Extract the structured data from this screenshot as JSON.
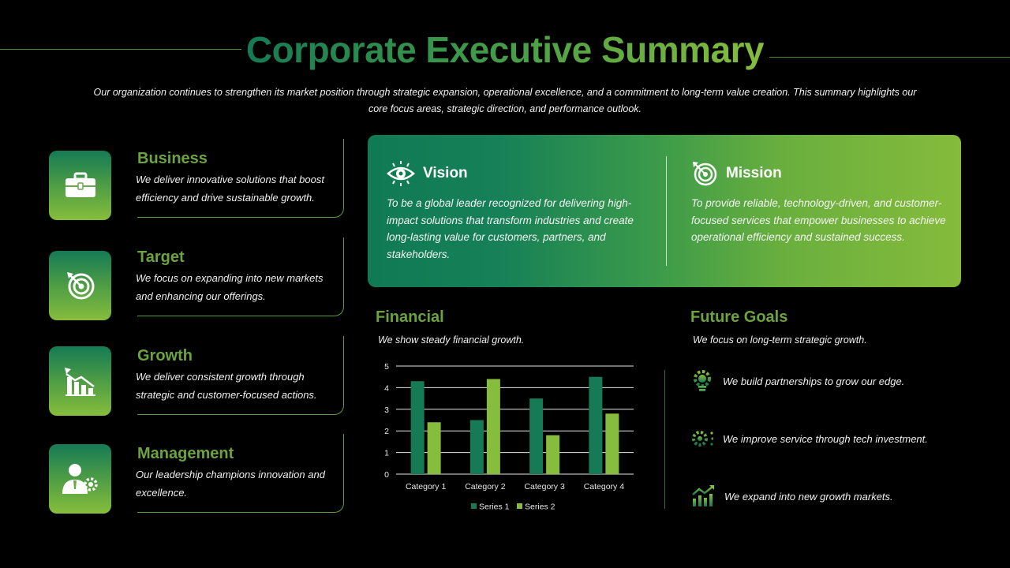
{
  "header": {
    "title": "Corporate Executive Summary",
    "intro": "Our organization continues to strengthen its market position through strategic expansion, operational excellence, and a commitment to long-term value creation. This summary highlights our core focus areas, strategic direction, and performance outlook."
  },
  "focus_areas": [
    {
      "title": "Business",
      "desc": "We deliver innovative solutions that boost efficiency and drive sustainable growth.",
      "icon": "briefcase-icon"
    },
    {
      "title": "Target",
      "desc": "We focus on expanding into new markets and enhancing our offerings.",
      "icon": "target-icon"
    },
    {
      "title": "Growth",
      "desc": "We deliver consistent growth through strategic and customer-focused actions.",
      "icon": "growth-chart-icon"
    },
    {
      "title": "Management",
      "desc": "Our leadership champions innovation and excellence.",
      "icon": "manager-gear-icon"
    }
  ],
  "vision": {
    "title": "Vision",
    "text": "To be a global leader recognized for delivering high-impact solutions that transform industries and create long-lasting value for customers, partners, and stakeholders.",
    "icon": "eye-icon"
  },
  "mission": {
    "title": "Mission",
    "text": "To provide reliable, technology-driven, and customer-focused services that empower businesses to achieve operational efficiency and sustained success.",
    "icon": "target-arrow-icon"
  },
  "financial": {
    "title": "Financial",
    "subtitle": "We show steady financial growth."
  },
  "chart_data": {
    "type": "bar",
    "categories": [
      "Category 1",
      "Category 2",
      "Category 3",
      "Category 4"
    ],
    "series": [
      {
        "name": "Series 1",
        "values": [
          4.3,
          2.5,
          3.5,
          4.5
        ],
        "color": "#157a55"
      },
      {
        "name": "Series 2",
        "values": [
          2.4,
          4.4,
          1.8,
          2.8
        ],
        "color": "#86bd3c"
      }
    ],
    "ylim": [
      0,
      5
    ],
    "yticks": [
      "0",
      "1",
      "2",
      "3",
      "4",
      "5"
    ],
    "grid": true,
    "legend": "bottom"
  },
  "future_goals": {
    "title": "Future Goals",
    "subtitle": "We focus on long-term strategic growth.",
    "items": [
      {
        "text": "We build partnerships to grow our edge.",
        "icon": "idea-gear-icon"
      },
      {
        "text": "We improve service through tech investment.",
        "icon": "tech-gear-icon"
      },
      {
        "text": "We expand into new growth markets.",
        "icon": "growth-arrow-icon"
      }
    ]
  },
  "colors": {
    "dark_green": "#157a55",
    "light_green": "#86bd3c",
    "heading_green": "#6ba43e",
    "background": "#000000"
  }
}
